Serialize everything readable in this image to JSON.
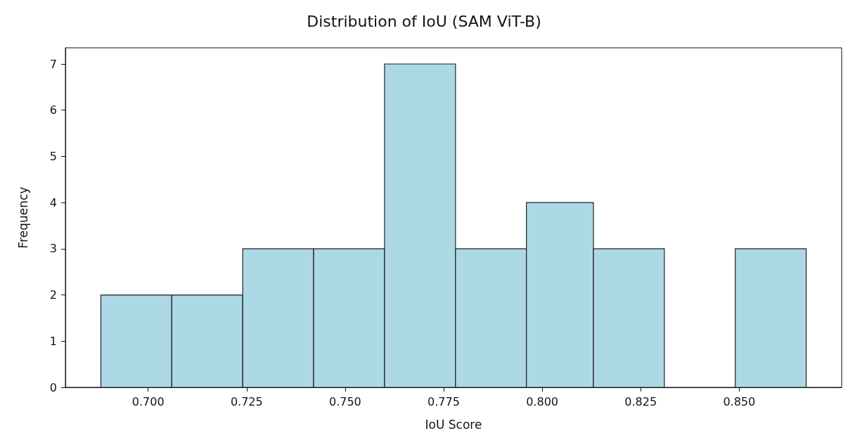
{
  "chart_data": {
    "type": "histogram",
    "title": "Distribution of IoU (SAM ViT-B)",
    "xlabel": "IoU Score",
    "ylabel": "Frequency",
    "bins": [
      0.688,
      0.706,
      0.724,
      0.742,
      0.76,
      0.778,
      0.796,
      0.813,
      0.831,
      0.849,
      0.867
    ],
    "values": [
      2,
      2,
      3,
      3,
      7,
      3,
      4,
      3,
      0,
      3
    ],
    "color": "#add8e6",
    "xlim": [
      0.679,
      0.876
    ],
    "xticks": [
      {
        "value": 0.7,
        "label": "0.700"
      },
      {
        "value": 0.725,
        "label": "0.725"
      },
      {
        "value": 0.75,
        "label": "0.750"
      },
      {
        "value": 0.775,
        "label": "0.775"
      },
      {
        "value": 0.8,
        "label": "0.800"
      },
      {
        "value": 0.825,
        "label": "0.825"
      },
      {
        "value": 0.85,
        "label": "0.850"
      }
    ],
    "ylim": [
      0,
      7.35
    ],
    "yticks": [
      0,
      1,
      2,
      3,
      4,
      5,
      6,
      7
    ],
    "grid": false
  }
}
